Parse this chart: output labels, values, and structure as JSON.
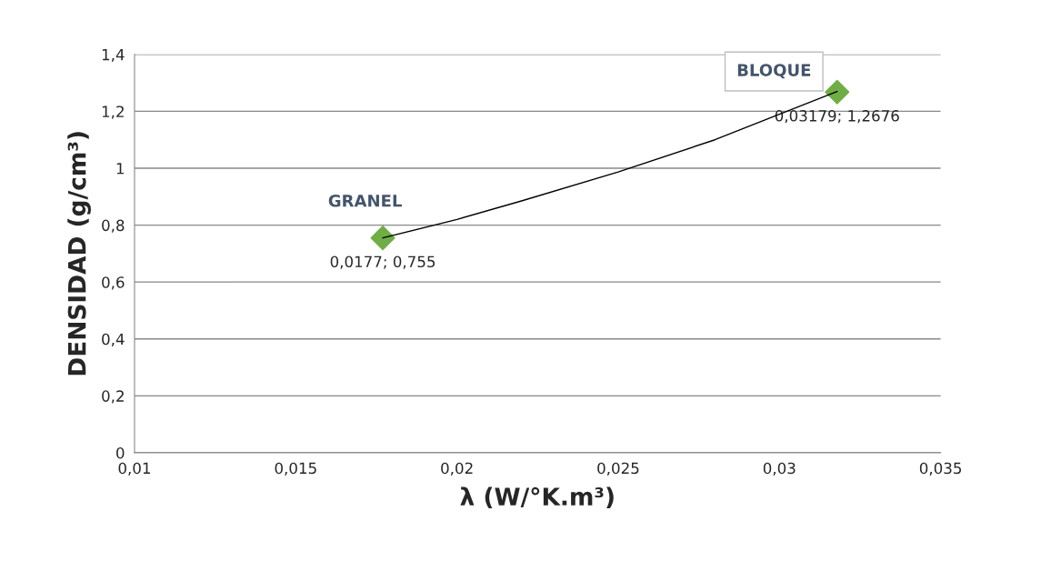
{
  "chart_data": {
    "type": "scatter",
    "xlabel": "λ (W/°K.m³)",
    "ylabel": "DENSIDAD (g/cm³)",
    "series": [
      {
        "color": "#70ad47",
        "x": [
          0.0177,
          0.03179
        ],
        "values": [
          0.755,
          1.2676
        ],
        "value_labels": [
          "0,0177; 0,755",
          "0,03179; 1,2676"
        ],
        "marker": "diamond"
      },
      {
        "type": "line",
        "color": "#000000",
        "x": [
          0.0177,
          0.02,
          0.022,
          0.025,
          0.028,
          0.03,
          0.03179
        ],
        "values": [
          0.755,
          0.82,
          0.885,
          0.987,
          1.1,
          1.19,
          1.27
        ],
        "marker": "none",
        "line_style": "solid"
      }
    ],
    "annotations": [
      {
        "text": "GRANEL",
        "x": 0.0177,
        "y": 0.755
      },
      {
        "text": "BLOQUE",
        "x": 0.03179,
        "y": 1.2676
      }
    ],
    "xlim": [
      0.01,
      0.035
    ],
    "xticks": [
      {
        "value": 0.01,
        "label": "0,01"
      },
      {
        "value": 0.015,
        "label": "0,015"
      },
      {
        "value": 0.02,
        "label": "0,02"
      },
      {
        "value": 0.025,
        "label": "0,025"
      },
      {
        "value": 0.03,
        "label": "0,03"
      },
      {
        "value": 0.035,
        "label": "0,035"
      }
    ],
    "ylim": [
      0,
      1.4
    ],
    "yticks": [
      0,
      {
        "value": 0.2,
        "label": "0,2"
      },
      {
        "value": 0.4,
        "label": "0,4"
      },
      {
        "value": 0.6,
        "label": "0,6"
      },
      {
        "value": 0.8,
        "label": "0,8"
      },
      1,
      {
        "value": 1.2,
        "label": "1,2"
      },
      {
        "value": 1.4,
        "label": "1,4"
      }
    ],
    "grid": "y",
    "legend": false
  }
}
